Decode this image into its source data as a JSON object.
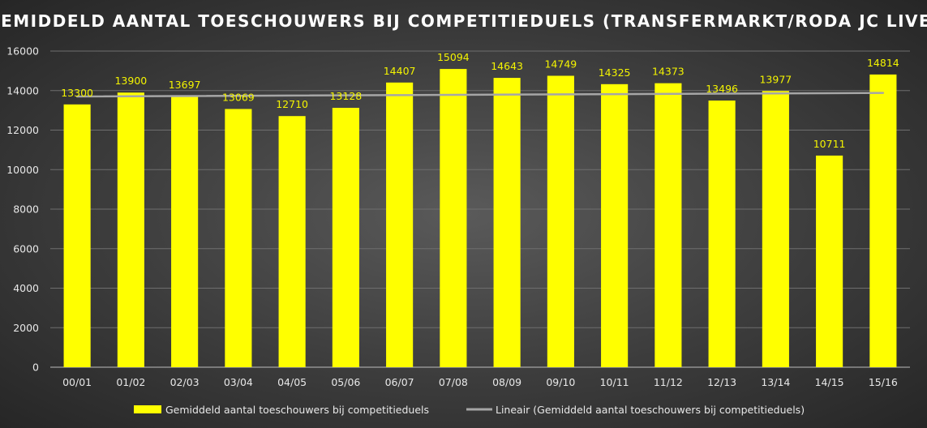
{
  "chart_data": {
    "type": "bar",
    "title": "GEMIDDELD AANTAL TOESCHOUWERS BIJ COMPETITIEDUELS (TRANSFERMARKT/RODA JC LIVE)",
    "categories": [
      "00/01",
      "01/02",
      "02/03",
      "03/04",
      "04/05",
      "05/06",
      "06/07",
      "07/08",
      "08/09",
      "09/10",
      "10/11",
      "11/12",
      "12/13",
      "13/14",
      "14/15",
      "15/16"
    ],
    "series": [
      {
        "name": "Gemiddeld aantal toeschouwers bij competitieduels",
        "values": [
          13300,
          13900,
          13697,
          13069,
          12710,
          13128,
          14407,
          15094,
          14643,
          14749,
          14325,
          14373,
          13496,
          13977,
          10711,
          14814
        ],
        "color": "#ffff00"
      }
    ],
    "trendline": {
      "name": "Lineair (Gemiddeld aantal toeschouwers bij competitieduels)",
      "color": "#a6a6a6",
      "start": 13700,
      "end": 13880
    },
    "yticks": [
      0,
      2000,
      4000,
      6000,
      8000,
      10000,
      12000,
      14000,
      16000
    ],
    "ylim": [
      0,
      16000
    ],
    "xlabel": "",
    "ylabel": "",
    "grid": true,
    "legend_position": "bottom"
  }
}
